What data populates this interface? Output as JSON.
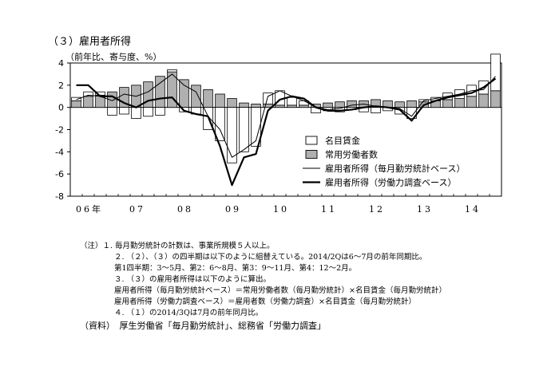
{
  "title": "（３）雇用者所得",
  "unit_label": "（前年比、寄与度、%）",
  "chart_data": {
    "type": "bar",
    "ylim": [
      -8,
      4
    ],
    "yticks": [
      4,
      2,
      0,
      -2,
      -4,
      -6,
      -8
    ],
    "x_labels": [
      "06年",
      "07",
      "08",
      "09",
      "10",
      "11",
      "12",
      "13",
      "14"
    ],
    "legend_position": "right",
    "series": [
      {
        "name": "名目賃金",
        "kind": "bar-outline",
        "values": [
          0.3,
          0.4,
          0.3,
          -0.7,
          -0.6,
          -1.0,
          -0.8,
          -0.7,
          0.2,
          -0.4,
          -0.6,
          -2.0,
          -3.0,
          -5.0,
          -4.0,
          -3.5,
          1.0,
          1.3,
          0.7,
          0.4,
          -0.5,
          -0.3,
          -0.4,
          -0.2,
          -0.4,
          -0.5,
          -0.3,
          -0.6,
          -1.0,
          0.2,
          0.3,
          0.6,
          0.8,
          1.0,
          1.2,
          3.3
        ]
      },
      {
        "name": "常用労働者数",
        "kind": "bar-gray",
        "values": [
          0.6,
          1.0,
          1.1,
          1.4,
          1.8,
          2.0,
          2.3,
          2.8,
          3.2,
          2.5,
          2.0,
          1.6,
          1.2,
          0.8,
          0.4,
          0.3,
          0.3,
          0.2,
          0.2,
          0.2,
          0.3,
          0.4,
          0.5,
          0.6,
          0.6,
          0.7,
          0.6,
          0.5,
          0.6,
          0.5,
          0.6,
          0.7,
          0.8,
          1.0,
          1.2,
          1.5
        ]
      },
      {
        "name": "雇用者所得（毎月勤労統計ベース）",
        "kind": "line-thin",
        "values": [
          0.7,
          1.1,
          1.0,
          0.6,
          1.2,
          1.0,
          1.4,
          2.2,
          3.0,
          2.0,
          1.4,
          -0.8,
          -2.0,
          -4.5,
          -3.8,
          -3.0,
          1.0,
          1.5,
          1.0,
          0.6,
          0.0,
          -0.2,
          -0.1,
          0.2,
          0.3,
          0.1,
          0.0,
          -0.1,
          -0.8,
          0.6,
          0.8,
          1.0,
          1.2,
          1.5,
          1.6,
          2.8
        ]
      },
      {
        "name": "雇用者所得（労働力調査ベース）",
        "kind": "line-thick",
        "values": [
          2.0,
          2.0,
          1.0,
          1.0,
          0.4,
          0.0,
          0.6,
          0.8,
          0.9,
          -0.3,
          -0.6,
          -0.8,
          -3.5,
          -7.0,
          -4.5,
          -4.2,
          -0.3,
          0.7,
          1.0,
          0.8,
          0.0,
          -0.3,
          -0.3,
          -0.2,
          0.0,
          0.1,
          0.0,
          -0.2,
          -1.2,
          0.2,
          0.6,
          0.9,
          1.1,
          1.3,
          1.8,
          2.6
        ]
      }
    ]
  },
  "notes": [
    "（注）１. 毎月勤労統計の計数は、事業所規模５人以上。",
    "２. （２）、（３）の四半期は以下のように組替えている。2014/2Qは6～7月の前年同期比。",
    "第1四半期：3～5月、第2：6～8月、第3：9～11月、第4：12～2月。",
    "３. （３）の雇用者所得は以下のように算出。",
    "雇用者所得（毎月勤労統計ベース）＝常用労働者数（毎月勤労統計）×名目賃金（毎月勤労統計）",
    "雇用者所得（労働力調査ベース）＝雇用者数（労働力調査）×名目賃金（毎月勤労統計）",
    "４. （１）の2014/3Qは7月の前年同月比。"
  ],
  "source": "（資料）　厚生労働省「毎月勤労統計」、総務省「労働力調査」"
}
